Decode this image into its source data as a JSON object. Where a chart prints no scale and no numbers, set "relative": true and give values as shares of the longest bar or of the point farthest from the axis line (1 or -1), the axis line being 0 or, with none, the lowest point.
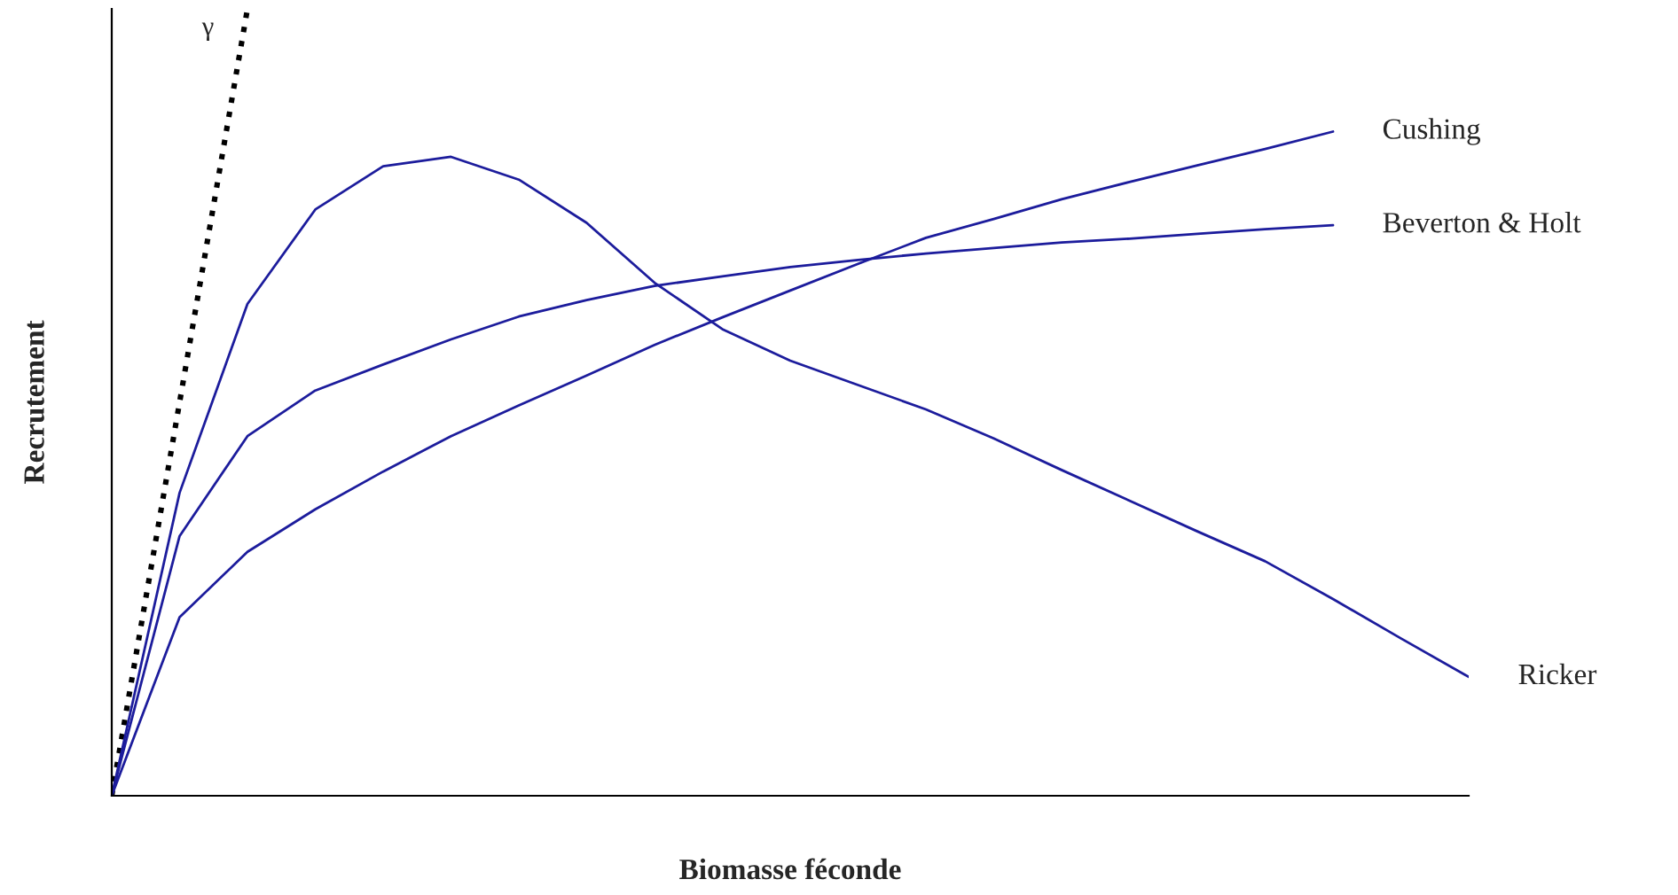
{
  "chart_data": {
    "type": "line",
    "relative": true,
    "xlabel": "Biomasse féconde",
    "ylabel": "Recrutement",
    "legend": false,
    "marker": "none",
    "categories": [
      null,
      null,
      null,
      null,
      null,
      null,
      null,
      null,
      null,
      null,
      null,
      null,
      null,
      null,
      null,
      null,
      null,
      null,
      null,
      null,
      null
    ],
    "series": [
      {
        "name": "γ",
        "color": "#000000",
        "line_style": "dotted",
        "values": [
          0,
          0.5,
          1.0,
          null,
          null,
          null,
          null,
          null,
          null,
          null,
          null,
          null,
          null,
          null,
          null,
          null,
          null,
          null,
          null,
          null,
          null
        ]
      },
      {
        "name": "Ricker",
        "color": "#1c1c9c",
        "line_style": "solid",
        "values": [
          0,
          0.385,
          0.625,
          0.745,
          0.8,
          0.812,
          0.783,
          0.728,
          0.652,
          0.593,
          0.553,
          0.522,
          0.491,
          0.454,
          0.414,
          0.375,
          0.336,
          0.298,
          0.25,
          0.2,
          0.151
        ]
      },
      {
        "name": "Beverton & Holt",
        "color": "#1c1c9c",
        "line_style": "solid",
        "values": [
          0,
          0.33,
          0.457,
          0.515,
          0.548,
          0.58,
          0.609,
          0.63,
          0.648,
          0.66,
          0.672,
          0.681,
          0.689,
          0.696,
          0.703,
          0.708,
          0.714,
          0.72,
          0.725,
          null,
          null
        ]
      },
      {
        "name": "Cushing",
        "color": "#1c1c9c",
        "line_style": "solid",
        "values": [
          0,
          0.227,
          0.31,
          0.364,
          0.412,
          0.457,
          0.496,
          0.534,
          0.573,
          0.608,
          0.642,
          0.676,
          0.709,
          0.733,
          0.758,
          0.78,
          0.801,
          0.822,
          0.844,
          null,
          null
        ]
      }
    ]
  }
}
